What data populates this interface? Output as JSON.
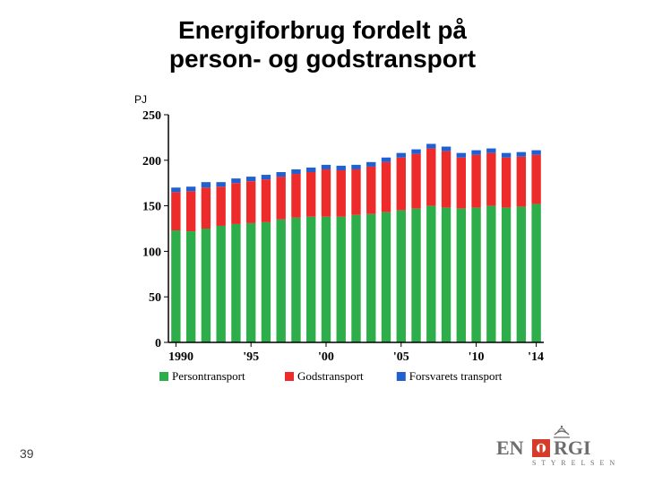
{
  "title_line1": "Energiforbrug fordelt på",
  "title_line2": "person- og godstransport",
  "title_fontsize": 28,
  "unit_label": "PJ",
  "unit_fontsize": 12,
  "page_number": "39",
  "page_number_fontsize": 14,
  "chart": {
    "type": "stacked-bar",
    "ylim": [
      0,
      250
    ],
    "ytick_step": 50,
    "yticks": [
      0,
      50,
      100,
      150,
      200,
      250
    ],
    "axis_font_color": "#000000",
    "axis_fontsize": 14,
    "axis_fontweight": "700",
    "years": [
      1990,
      1991,
      1992,
      1993,
      1994,
      1995,
      1996,
      1997,
      1998,
      1999,
      2000,
      2001,
      2002,
      2003,
      2004,
      2005,
      2006,
      2007,
      2008,
      2009,
      2010,
      2011,
      2012,
      2013,
      2014
    ],
    "xticks": [
      {
        "year": 1990,
        "label": "1990"
      },
      {
        "year": 1995,
        "label": "'95"
      },
      {
        "year": 2000,
        "label": "'00"
      },
      {
        "year": 2005,
        "label": "'05"
      },
      {
        "year": 2010,
        "label": "'10"
      },
      {
        "year": 2014,
        "label": "'14"
      }
    ],
    "series": [
      {
        "name": "Persontransport",
        "color": "#2eae4b",
        "values": [
          123,
          122,
          125,
          128,
          130,
          131,
          132,
          135,
          137,
          138,
          138,
          138,
          140,
          141,
          143,
          145,
          147,
          150,
          148,
          147,
          148,
          150,
          148,
          149,
          152
        ]
      },
      {
        "name": "Godstransport",
        "color": "#ee2b2b",
        "values": [
          42,
          44,
          45,
          43,
          45,
          46,
          47,
          47,
          48,
          49,
          52,
          51,
          50,
          52,
          55,
          58,
          60,
          63,
          62,
          56,
          58,
          58,
          55,
          55,
          54
        ]
      },
      {
        "name": "Forsvarets transport",
        "color": "#2060d0",
        "values": [
          5,
          5,
          6,
          5,
          5,
          5,
          5,
          5,
          5,
          5,
          5,
          5,
          5,
          5,
          5,
          5,
          5,
          5,
          5,
          5,
          5,
          5,
          5,
          5,
          5
        ]
      }
    ],
    "plot_background": "#ffffff",
    "bar_width_ratio": 0.62,
    "legend_fontsize": 13,
    "legend_marker": "square"
  },
  "logo": {
    "text_en": "EN",
    "text_rgi": "RGI",
    "subtext": "S T Y R E L S E N",
    "color_text": "#6e6e6e",
    "color_accent": "#d53d2a",
    "color_crown": "#6e6e6e"
  }
}
